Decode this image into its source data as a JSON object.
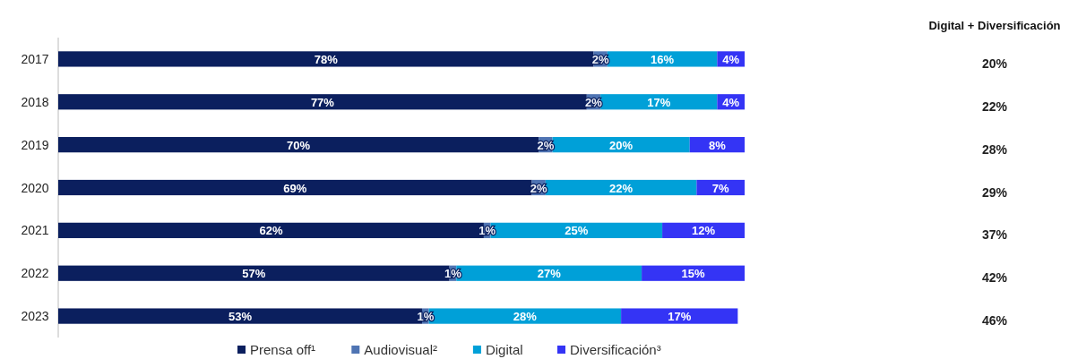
{
  "chart_data": {
    "type": "bar",
    "orientation": "horizontal",
    "stacked": true,
    "categories": [
      "2017",
      "2018",
      "2019",
      "2020",
      "2021",
      "2022",
      "2023"
    ],
    "series": [
      {
        "name": "Prensa off¹",
        "color": "#0b1f5e",
        "values": [
          78,
          77,
          70,
          69,
          62,
          57,
          53
        ],
        "value_labels": [
          "78%",
          "77%",
          "70%",
          "69%",
          "62%",
          "57%",
          "53%"
        ]
      },
      {
        "name": "Audiovisual²",
        "color": "#4f74b3",
        "values": [
          2,
          2,
          2,
          2,
          1,
          1,
          1
        ],
        "value_labels": [
          "2%",
          "2%",
          "2%",
          "2%",
          "1%",
          "1%",
          "1%"
        ]
      },
      {
        "name": "Digital",
        "color": "#00a0d8",
        "values": [
          16,
          17,
          20,
          22,
          25,
          27,
          28
        ],
        "value_labels": [
          "16%",
          "17%",
          "20%",
          "22%",
          "25%",
          "27%",
          "28%"
        ]
      },
      {
        "name": "Diversificación³",
        "color": "#3434f5",
        "values": [
          4,
          4,
          8,
          7,
          12,
          15,
          17
        ],
        "value_labels": [
          "4%",
          "4%",
          "8%",
          "7%",
          "12%",
          "15%",
          "17%"
        ]
      }
    ],
    "xlim": [
      0,
      100
    ],
    "tick_labels": "y",
    "legend": "bottom",
    "annotations": [
      "Digital + Diversificación",
      "20%",
      "22%",
      "28%",
      "29%",
      "37%",
      "42%",
      "46%"
    ]
  }
}
